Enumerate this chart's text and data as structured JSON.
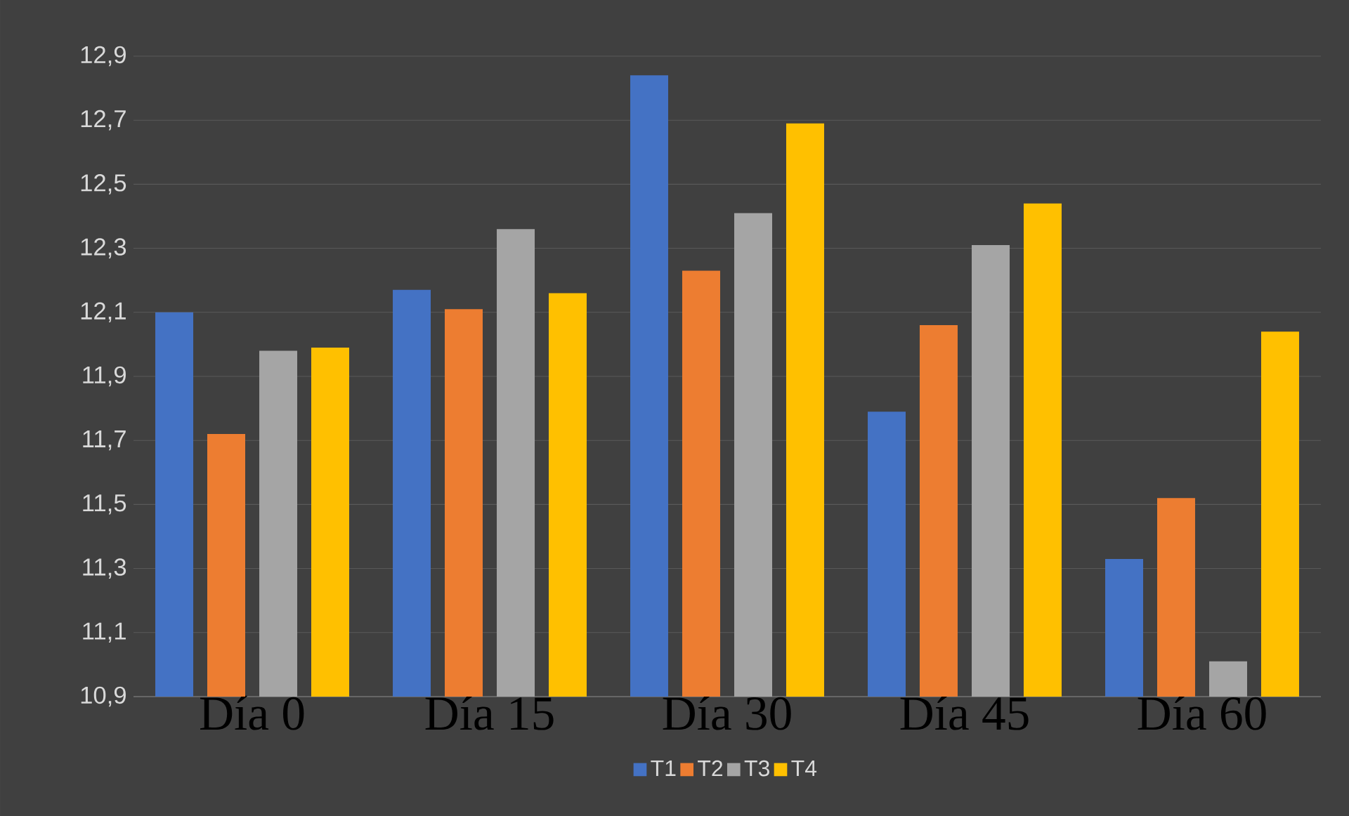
{
  "chart_data": {
    "type": "bar",
    "categories": [
      "Día 0",
      "Día 15",
      "Día 30",
      "Día 45",
      "Día 60"
    ],
    "series": [
      {
        "name": "T1",
        "color": "#4472c4",
        "values": [
          12.1,
          12.17,
          12.84,
          11.79,
          11.33
        ]
      },
      {
        "name": "T2",
        "color": "#ed7d31",
        "values": [
          11.72,
          12.11,
          12.23,
          12.06,
          11.52
        ]
      },
      {
        "name": "T3",
        "color": "#a5a5a5",
        "values": [
          11.98,
          12.36,
          12.41,
          12.31,
          11.01
        ]
      },
      {
        "name": "T4",
        "color": "#ffc000",
        "values": [
          11.99,
          12.16,
          12.69,
          12.44,
          12.04
        ]
      }
    ],
    "ylim": [
      10.9,
      12.9
    ],
    "yticks": [
      {
        "value": 10.9,
        "label": "10,9"
      },
      {
        "value": 11.1,
        "label": "11,1"
      },
      {
        "value": 11.3,
        "label": "11,3"
      },
      {
        "value": 11.5,
        "label": "11,5"
      },
      {
        "value": 11.7,
        "label": "11,7"
      },
      {
        "value": 11.9,
        "label": "11,9"
      },
      {
        "value": 12.1,
        "label": "12,1"
      },
      {
        "value": 12.3,
        "label": "12,3"
      },
      {
        "value": 12.5,
        "label": "12,5"
      },
      {
        "value": 12.7,
        "label": "12,7"
      },
      {
        "value": 12.9,
        "label": "12,9"
      }
    ],
    "grid": "y",
    "legend": "bottom"
  }
}
